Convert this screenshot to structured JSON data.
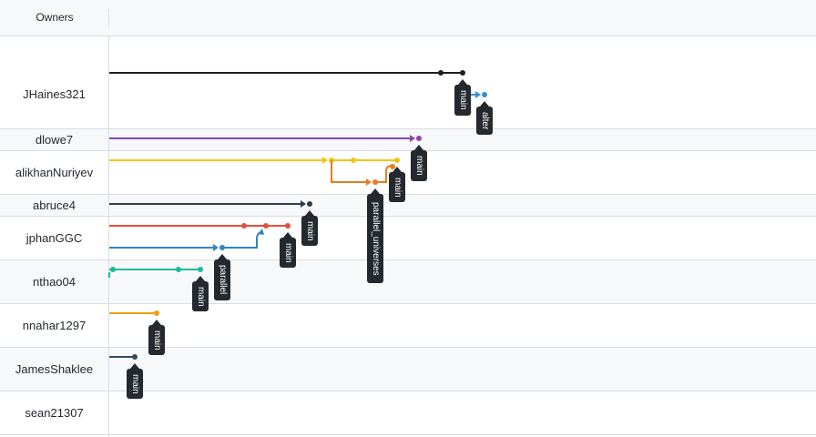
{
  "header": {
    "owners_label": "Owners"
  },
  "owners": [
    {
      "name": "JHaines321"
    },
    {
      "name": "dlowe7"
    },
    {
      "name": "alikhanNuriyev"
    },
    {
      "name": "abruce4"
    },
    {
      "name": "jphanGGC"
    },
    {
      "name": "nthao04"
    },
    {
      "name": "nnahar1297"
    },
    {
      "name": "JamesShaklee"
    },
    {
      "name": "sean21307"
    }
  ],
  "branch_tags": [
    {
      "label": "main"
    },
    {
      "label": "alter"
    },
    {
      "label": "main"
    },
    {
      "label": "main"
    },
    {
      "label": "parallel_universes"
    },
    {
      "label": "main"
    },
    {
      "label": "main"
    },
    {
      "label": "parallel"
    },
    {
      "label": "main"
    },
    {
      "label": "main"
    },
    {
      "label": "main"
    }
  ],
  "colors": {
    "black": "#1b1f23",
    "blue": "#3a8fd6",
    "purple": "#8e44ad",
    "yellow": "#f1c40f",
    "orange": "#e67e22",
    "navy": "#2c3e50",
    "red": "#e74c3c",
    "steel": "#2e86c1",
    "teal": "#1abc9c",
    "amber": "#f39c12",
    "dark": "#34495e"
  }
}
